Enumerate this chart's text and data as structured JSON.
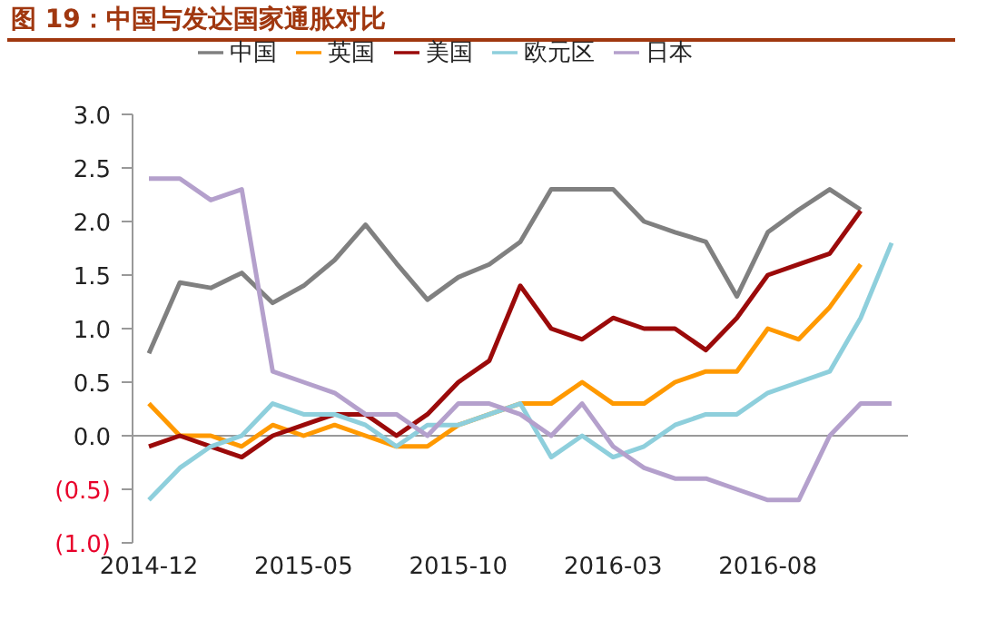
{
  "chart_data": {
    "type": "line",
    "title": "图 19：中国与发达国家通胀对比",
    "categories": [
      "2014-12",
      null,
      null,
      null,
      null,
      "2015-05",
      null,
      null,
      null,
      null,
      "2015-10",
      null,
      null,
      null,
      null,
      "2016-03",
      null,
      null,
      null,
      null,
      "2016-08",
      null,
      null,
      null,
      null
    ],
    "series": [
      {
        "name": "中国",
        "color": "#808080",
        "values": [
          0.77,
          1.43,
          1.38,
          1.52,
          1.24,
          1.4,
          1.64,
          1.97,
          1.61,
          1.27,
          1.48,
          1.6,
          1.81,
          2.3,
          2.3,
          2.3,
          2.0,
          1.9,
          1.81,
          1.3,
          1.9,
          2.11,
          2.3,
          2.11,
          null
        ]
      },
      {
        "name": "英国",
        "color": "#ff9900",
        "values": [
          0.3,
          0.0,
          0.0,
          -0.1,
          0.1,
          0.0,
          0.1,
          0.0,
          -0.1,
          -0.1,
          0.1,
          0.2,
          0.3,
          0.3,
          0.5,
          0.3,
          0.3,
          0.5,
          0.6,
          0.6,
          1.0,
          0.9,
          1.2,
          1.6,
          null
        ]
      },
      {
        "name": "美国",
        "color": "#9b0a0a",
        "values": [
          -0.1,
          0.0,
          -0.1,
          -0.2,
          0.0,
          0.1,
          0.2,
          0.2,
          0.0,
          0.2,
          0.5,
          0.7,
          1.4,
          1.0,
          0.9,
          1.1,
          1.0,
          1.0,
          0.8,
          1.1,
          1.5,
          1.6,
          1.7,
          2.1,
          null
        ]
      },
      {
        "name": "欧元区",
        "color": "#8ecfdc",
        "values": [
          -0.6,
          -0.3,
          -0.1,
          0.0,
          0.3,
          0.2,
          0.2,
          0.1,
          -0.1,
          0.1,
          0.1,
          0.2,
          0.3,
          -0.2,
          0.0,
          -0.2,
          -0.1,
          0.1,
          0.2,
          0.2,
          0.4,
          0.5,
          0.6,
          1.1,
          1.8
        ]
      },
      {
        "name": "日本",
        "color": "#b4a0cc",
        "values": [
          2.4,
          2.4,
          2.2,
          2.3,
          0.6,
          0.5,
          0.4,
          0.2,
          0.2,
          0.0,
          0.3,
          0.3,
          0.2,
          0.0,
          0.3,
          -0.1,
          -0.3,
          -0.4,
          -0.4,
          -0.5,
          -0.6,
          -0.6,
          0.0,
          0.3,
          0.3
        ]
      }
    ],
    "ylim": [
      -1.0,
      3.0
    ],
    "yticks": [
      {
        "value": -1.0,
        "label": "(1.0)"
      },
      {
        "value": -0.5,
        "label": "(0.5)"
      },
      {
        "value": 0.0,
        "label": "0.0"
      },
      {
        "value": 0.5,
        "label": "0.5"
      },
      {
        "value": 1.0,
        "label": "1.0"
      },
      {
        "value": 1.5,
        "label": "1.5"
      },
      {
        "value": 2.0,
        "label": "2.0"
      },
      {
        "value": 2.5,
        "label": "2.5"
      },
      {
        "value": 3.0,
        "label": "3.0"
      }
    ],
    "ref_lines": [
      {
        "axis": "y",
        "value": 0.0,
        "color": "#999999"
      }
    ],
    "legend": "top",
    "marker": "none",
    "line_style": "solid"
  }
}
